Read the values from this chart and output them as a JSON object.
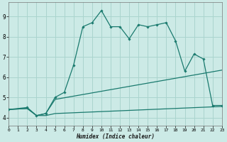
{
  "xlabel": "Humidex (Indice chaleur)",
  "xlim": [
    0,
    23
  ],
  "ylim": [
    3.6,
    9.7
  ],
  "background_color": "#cceae6",
  "grid_color": "#aad4ce",
  "line_color": "#1a7a6e",
  "xticks": [
    0,
    1,
    2,
    3,
    4,
    5,
    6,
    7,
    8,
    9,
    10,
    11,
    12,
    13,
    14,
    15,
    16,
    17,
    18,
    19,
    20,
    21,
    22,
    23
  ],
  "yticks": [
    4,
    5,
    6,
    7,
    8,
    9
  ],
  "curve1_x": [
    0,
    2,
    3,
    4,
    5,
    6,
    7,
    8,
    9,
    10,
    11,
    12,
    13,
    14,
    15,
    16,
    17,
    18,
    19,
    20,
    21,
    22,
    23
  ],
  "curve1_y": [
    4.4,
    4.5,
    4.1,
    4.2,
    5.0,
    5.25,
    6.6,
    8.5,
    8.7,
    9.3,
    8.5,
    8.5,
    7.9,
    8.6,
    8.5,
    8.6,
    8.7,
    7.8,
    6.3,
    7.15,
    6.9,
    4.6,
    4.6
  ],
  "curve2_x": [
    0,
    2,
    3,
    4,
    5,
    23
  ],
  "curve2_y": [
    4.4,
    4.45,
    4.1,
    4.2,
    4.9,
    6.35
  ],
  "curve3_x": [
    0,
    2,
    3,
    4,
    5,
    23
  ],
  "curve3_y": [
    4.4,
    4.45,
    4.1,
    4.1,
    4.2,
    4.55
  ]
}
